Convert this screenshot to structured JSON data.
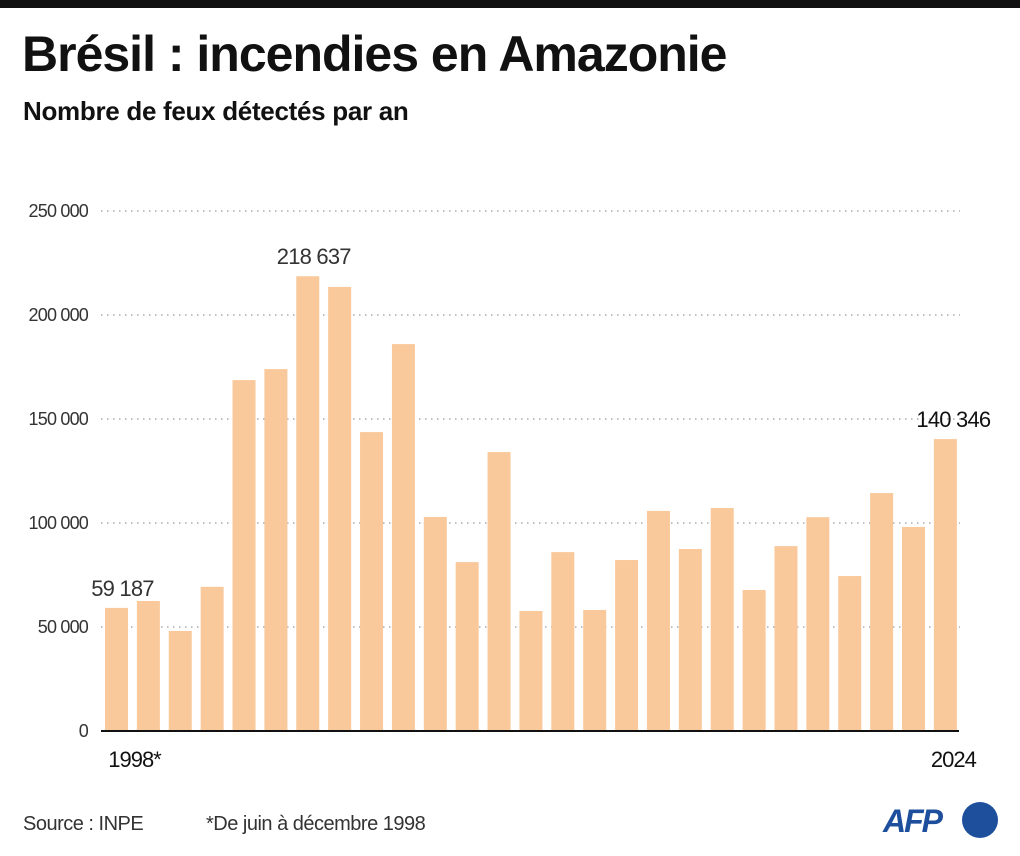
{
  "header": {
    "title": "Brésil : incendies en Amazonie",
    "subtitle": "Nombre de feux détectés par an"
  },
  "footer": {
    "source": "Source : INPE",
    "note": "*De juin à décembre 1998",
    "logo_text": "AFP"
  },
  "colors": {
    "bar": "#f9c99b",
    "grid": "#9a9a9a",
    "axis": "#111111",
    "logo": "#1d4f9c"
  },
  "chart_data": {
    "type": "bar",
    "title": "Brésil : incendies en Amazonie",
    "subtitle": "Nombre de feux détectés par an",
    "xlabel": "",
    "ylabel": "",
    "ylim": [
      0,
      250000
    ],
    "grid": true,
    "yticks": [
      0,
      50000,
      100000,
      150000,
      200000,
      250000
    ],
    "ytick_labels": [
      "0",
      "50 000",
      "100 000",
      "150 000",
      "200 000",
      "250 000"
    ],
    "categories": [
      "1998*",
      "1999",
      "2000",
      "2001",
      "2002",
      "2003",
      "2004",
      "2005",
      "2006",
      "2007",
      "2008",
      "2009",
      "2010",
      "2011",
      "2012",
      "2013",
      "2014",
      "2015",
      "2016",
      "2017",
      "2018",
      "2019",
      "2020",
      "2021",
      "2022",
      "2023",
      "2024"
    ],
    "xtick_labels_shown": [
      {
        "index": 0,
        "label": "1998*"
      },
      {
        "index": 26,
        "label": "2024"
      }
    ],
    "values": [
      59187,
      62500,
      48100,
      69300,
      168700,
      174000,
      218637,
      213500,
      143700,
      186000,
      102900,
      81200,
      134100,
      57700,
      86000,
      58200,
      82200,
      105800,
      87500,
      107200,
      67800,
      88900,
      102800,
      74500,
      114400,
      98100,
      140346
    ],
    "annotations": [
      {
        "index": 0,
        "text": "59 187"
      },
      {
        "index": 6,
        "text": "218 637"
      },
      {
        "index": 26,
        "text": "140 346"
      }
    ],
    "footnote": "*De juin à décembre 1998",
    "source": "Source : INPE"
  }
}
